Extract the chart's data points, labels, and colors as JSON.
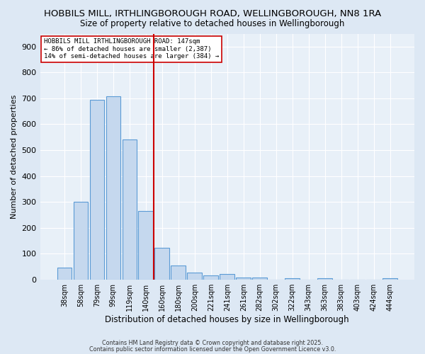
{
  "title1": "HOBBILS MILL, IRTHLINGBOROUGH ROAD, WELLINGBOROUGH, NN8 1RA",
  "title2": "Size of property relative to detached houses in Wellingborough",
  "xlabel": "Distribution of detached houses by size in Wellingborough",
  "ylabel": "Number of detached properties",
  "bar_labels": [
    "38sqm",
    "58sqm",
    "79sqm",
    "99sqm",
    "119sqm",
    "140sqm",
    "160sqm",
    "180sqm",
    "200sqm",
    "221sqm",
    "241sqm",
    "261sqm",
    "282sqm",
    "302sqm",
    "322sqm",
    "343sqm",
    "363sqm",
    "383sqm",
    "403sqm",
    "424sqm",
    "444sqm"
  ],
  "bar_values": [
    47,
    300,
    693,
    707,
    540,
    265,
    122,
    55,
    27,
    15,
    20,
    8,
    8,
    0,
    5,
    0,
    5,
    0,
    0,
    0,
    5
  ],
  "bar_color": "#c5d8ee",
  "bar_edge_color": "#5b9bd5",
  "vline_x": 5.5,
  "vline_color": "#cc0000",
  "annotation_box_text": "HOBBILS MILL IRTHLINGBOROUGH ROAD: 147sqm\n← 86% of detached houses are smaller (2,387)\n14% of semi-detached houses are larger (384) →",
  "annotation_box_color": "#cc0000",
  "ylim": [
    0,
    950
  ],
  "yticks": [
    0,
    100,
    200,
    300,
    400,
    500,
    600,
    700,
    800,
    900
  ],
  "footer1": "Contains HM Land Registry data © Crown copyright and database right 2025.",
  "footer2": "Contains public sector information licensed under the Open Government Licence v3.0.",
  "bg_color": "#dde8f4",
  "plot_bg_color": "#e8f0f8",
  "grid_color": "#ffffff",
  "title_fontsize": 9.5,
  "subtitle_fontsize": 8.5
}
